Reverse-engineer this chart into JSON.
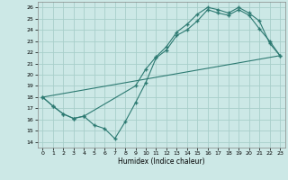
{
  "xlabel": "Humidex (Indice chaleur)",
  "xlim": [
    -0.5,
    23.5
  ],
  "ylim": [
    13.5,
    26.5
  ],
  "xticks": [
    0,
    1,
    2,
    3,
    4,
    5,
    6,
    7,
    8,
    9,
    10,
    11,
    12,
    13,
    14,
    15,
    16,
    17,
    18,
    19,
    20,
    21,
    22,
    23
  ],
  "yticks": [
    14,
    15,
    16,
    17,
    18,
    19,
    20,
    21,
    22,
    23,
    24,
    25,
    26
  ],
  "bg_color": "#cce8e6",
  "grid_color": "#a8ceca",
  "line_color": "#2d7a72",
  "line1_x": [
    0,
    1,
    2,
    3,
    4,
    5,
    6,
    7,
    8,
    9,
    10,
    11,
    12,
    13,
    14,
    15,
    16,
    17,
    18,
    19,
    20,
    21,
    22,
    23
  ],
  "line1_y": [
    18.0,
    17.2,
    16.5,
    16.1,
    16.3,
    15.5,
    15.2,
    14.3,
    15.8,
    17.5,
    19.3,
    21.5,
    22.2,
    23.5,
    24.0,
    24.8,
    25.8,
    25.5,
    25.3,
    25.8,
    25.3,
    24.1,
    23.0,
    21.7
  ],
  "line2_x": [
    0,
    1,
    2,
    3,
    4,
    9,
    10,
    11,
    12,
    13,
    14,
    15,
    16,
    17,
    18,
    19,
    20,
    21,
    22,
    23
  ],
  "line2_y": [
    18.0,
    17.2,
    16.5,
    16.1,
    16.3,
    19.0,
    20.5,
    21.6,
    22.5,
    23.8,
    24.5,
    25.4,
    26.0,
    25.8,
    25.5,
    26.0,
    25.5,
    24.8,
    22.8,
    21.7
  ],
  "line3_x": [
    0,
    23
  ],
  "line3_y": [
    18.0,
    21.7
  ]
}
